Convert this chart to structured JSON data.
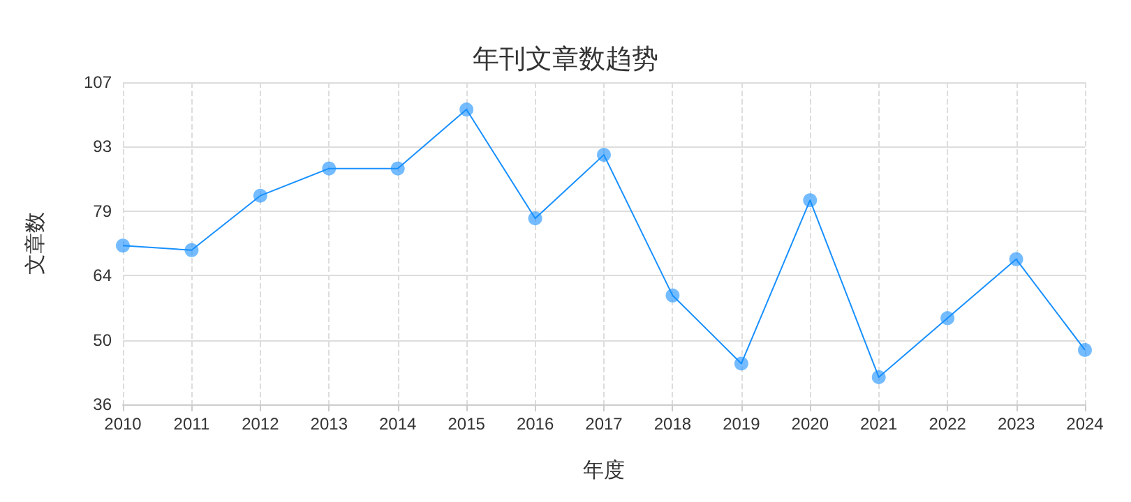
{
  "chart_data": {
    "type": "line",
    "title": "年刊文章数趋势",
    "xlabel": "年度",
    "ylabel": "文章数",
    "categories": [
      "2010",
      "2011",
      "2012",
      "2013",
      "2014",
      "2015",
      "2016",
      "2017",
      "2018",
      "2019",
      "2020",
      "2021",
      "2022",
      "2023",
      "2024"
    ],
    "series": [
      {
        "color": "#1890ff",
        "values": [
          71,
          70,
          82,
          88,
          88,
          101,
          77,
          91,
          60,
          45,
          81,
          42,
          55,
          68,
          48
        ]
      }
    ],
    "ylim": [
      36,
      107
    ],
    "yticks": [
      36,
      {
        "value": 50.2,
        "label": "50"
      },
      {
        "value": 64.4,
        "label": "64"
      },
      {
        "value": 78.6,
        "label": "79"
      },
      {
        "value": 92.8,
        "label": "93"
      },
      107
    ],
    "grid": true,
    "marker": "circle",
    "line_style": "solid"
  }
}
